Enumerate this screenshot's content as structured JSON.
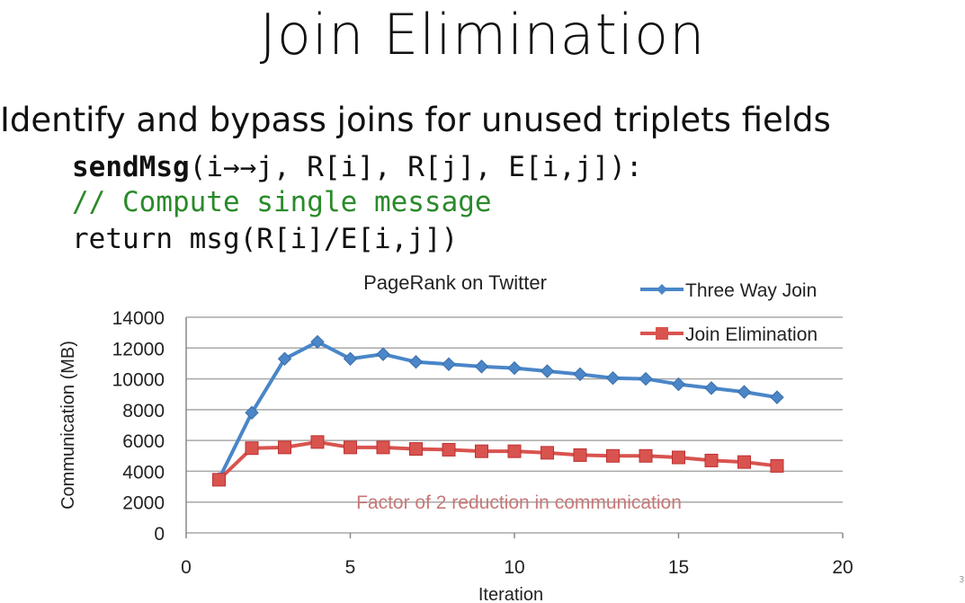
{
  "slide": {
    "title": "Join Elimination",
    "subtitle": "Identify and bypass joins for unused triplets fields",
    "code": {
      "line1_fn": "sendMsg",
      "line1_args": "(i→→j, R[i], R[j], E[i,j]):",
      "line2": "// Compute single message",
      "line3": "return msg(R[i]/E[i,j])"
    },
    "slide_number": "3"
  },
  "chart_data": {
    "type": "line",
    "title": "PageRank on Twitter",
    "xlabel": "Iteration",
    "ylabel": "Communication (MB)",
    "xlim": [
      0,
      20
    ],
    "ylim": [
      0,
      14000
    ],
    "xticks": [
      0,
      5,
      10,
      15,
      20
    ],
    "yticks": [
      0,
      2000,
      4000,
      6000,
      8000,
      10000,
      12000,
      14000
    ],
    "grid": "horizontal",
    "legend": "top-right",
    "annotation": "Factor of 2 reduction in communication",
    "annotation_color": "#c87878",
    "x": [
      1,
      2,
      3,
      4,
      5,
      6,
      7,
      8,
      9,
      10,
      11,
      12,
      13,
      14,
      15,
      16,
      17,
      18
    ],
    "series": [
      {
        "name": "Three Way Join",
        "color": "#4a86c8",
        "marker": "diamond",
        "values": [
          3500,
          7800,
          11300,
          12400,
          11300,
          11600,
          11100,
          10950,
          10800,
          10700,
          10500,
          10300,
          10050,
          10000,
          9650,
          9400,
          9150,
          8800
        ]
      },
      {
        "name": "Join Elimination",
        "color": "#d9534f",
        "marker": "square",
        "values": [
          3450,
          5500,
          5550,
          5900,
          5550,
          5550,
          5450,
          5400,
          5300,
          5300,
          5200,
          5050,
          5000,
          5000,
          4900,
          4700,
          4600,
          4350
        ]
      }
    ]
  }
}
